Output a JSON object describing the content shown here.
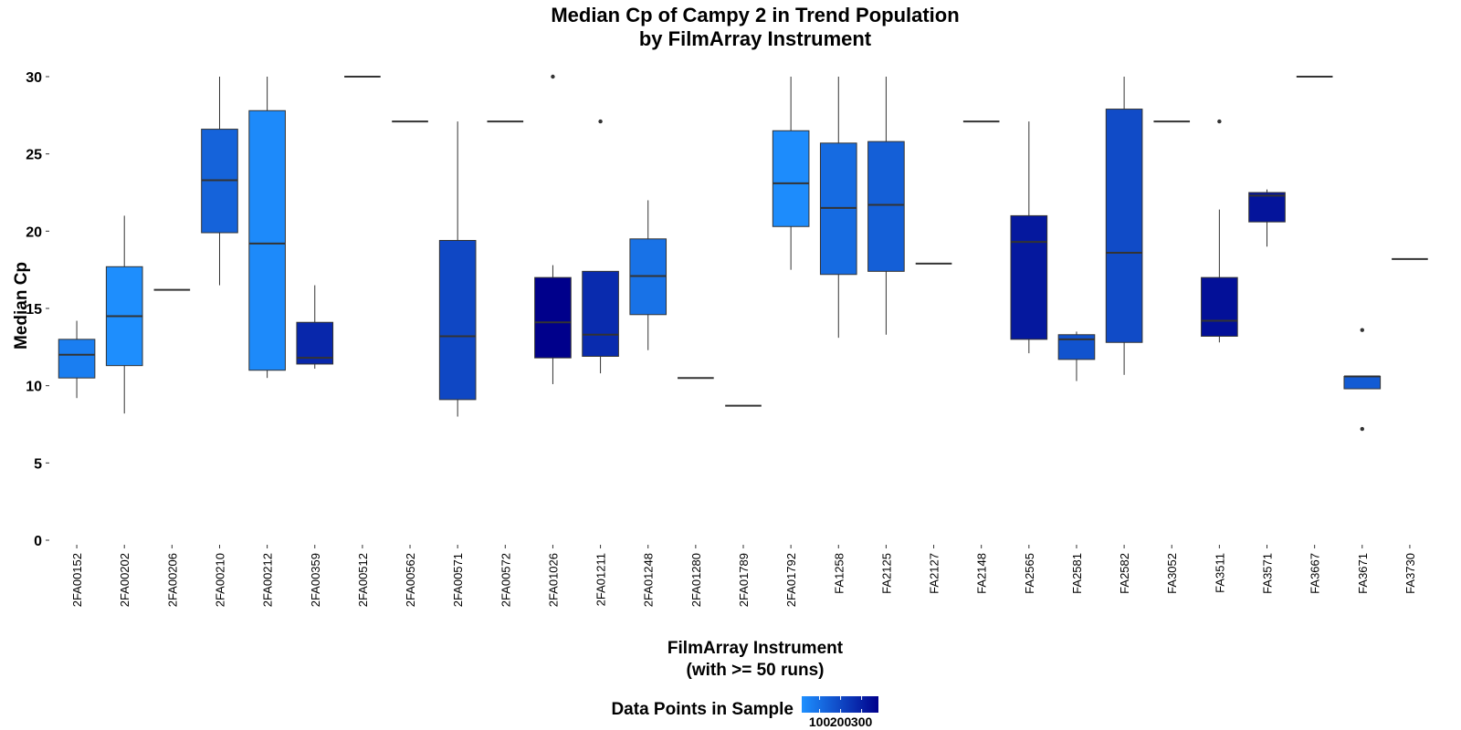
{
  "chart_data": {
    "type": "boxplot",
    "title_line1": "Median Cp of Campy 2 in Trend Population",
    "title_line2": "by FilmArray Instrument",
    "xlabel_line1": "FilmArray Instrument",
    "xlabel_line2": "(with >= 50 runs)",
    "ylabel": "Median Cp",
    "ylim": [
      0,
      30
    ],
    "yticks": [
      0,
      5,
      10,
      15,
      20,
      25,
      30
    ],
    "grid": false,
    "legend": {
      "title": "Data Points in Sample",
      "position": "bottom",
      "ticks": [
        100,
        200,
        300
      ],
      "range": [
        15,
        380
      ],
      "color_low": "#1E90FF",
      "color_high": "#00008B"
    },
    "instruments": [
      {
        "name": "2FA00152",
        "min": 9.2,
        "q1": 10.5,
        "median": 12.0,
        "q3": 13.0,
        "max": 14.2,
        "outliers": [],
        "n": 60
      },
      {
        "name": "2FA00202",
        "min": 8.2,
        "q1": 11.3,
        "median": 14.5,
        "q3": 17.7,
        "max": 21.0,
        "outliers": [],
        "n": 20
      },
      {
        "name": "2FA00206",
        "min": 16.2,
        "q1": 16.2,
        "median": 16.2,
        "q3": 16.2,
        "max": 16.2,
        "outliers": [],
        "n": 60
      },
      {
        "name": "2FA00210",
        "min": 16.5,
        "q1": 19.9,
        "median": 23.3,
        "q3": 26.6,
        "max": 30.0,
        "outliers": [],
        "n": 130
      },
      {
        "name": "2FA00212",
        "min": 10.5,
        "q1": 11.0,
        "median": 19.2,
        "q3": 27.8,
        "max": 30.0,
        "outliers": [],
        "n": 30
      },
      {
        "name": "2FA00359",
        "min": 11.1,
        "q1": 11.4,
        "median": 11.8,
        "q3": 14.1,
        "max": 16.5,
        "outliers": [],
        "n": 280
      },
      {
        "name": "2FA00512",
        "min": 30.0,
        "q1": 30.0,
        "median": 30.0,
        "q3": 30.0,
        "max": 30.0,
        "outliers": [],
        "n": 60
      },
      {
        "name": "2FA00562",
        "min": 27.1,
        "q1": 27.1,
        "median": 27.1,
        "q3": 27.1,
        "max": 27.1,
        "outliers": [],
        "n": 60
      },
      {
        "name": "2FA00571",
        "min": 8.0,
        "q1": 9.1,
        "median": 13.2,
        "q3": 19.4,
        "max": 27.1,
        "outliers": [],
        "n": 200
      },
      {
        "name": "2FA00572",
        "min": 27.1,
        "q1": 27.1,
        "median": 27.1,
        "q3": 27.1,
        "max": 27.1,
        "outliers": [],
        "n": 60
      },
      {
        "name": "2FA01026",
        "min": 10.1,
        "q1": 11.8,
        "median": 14.1,
        "q3": 17.0,
        "max": 17.8,
        "outliers": [
          30.0
        ],
        "n": 380
      },
      {
        "name": "2FA01211",
        "min": 10.8,
        "q1": 11.9,
        "median": 13.3,
        "q3": 17.4,
        "max": 17.4,
        "outliers": [
          27.1
        ],
        "n": 270
      },
      {
        "name": "2FA01248",
        "min": 12.3,
        "q1": 14.6,
        "median": 17.1,
        "q3": 19.5,
        "max": 22.0,
        "outliers": [],
        "n": 90
      },
      {
        "name": "2FA01280",
        "min": 10.5,
        "q1": 10.5,
        "median": 10.5,
        "q3": 10.5,
        "max": 10.5,
        "outliers": [],
        "n": 60
      },
      {
        "name": "2FA01789",
        "min": 8.7,
        "q1": 8.7,
        "median": 8.7,
        "q3": 8.7,
        "max": 8.7,
        "outliers": [],
        "n": 60
      },
      {
        "name": "2FA01792",
        "min": 17.5,
        "q1": 20.3,
        "median": 23.1,
        "q3": 26.5,
        "max": 30.0,
        "outliers": [],
        "n": 25
      },
      {
        "name": "FA1258",
        "min": 13.1,
        "q1": 17.2,
        "median": 21.5,
        "q3": 25.7,
        "max": 30.0,
        "outliers": [],
        "n": 110
      },
      {
        "name": "FA2125",
        "min": 13.3,
        "q1": 17.4,
        "median": 21.7,
        "q3": 25.8,
        "max": 30.0,
        "outliers": [],
        "n": 140
      },
      {
        "name": "FA2127",
        "min": 17.9,
        "q1": 17.9,
        "median": 17.9,
        "q3": 17.9,
        "max": 17.9,
        "outliers": [],
        "n": 60
      },
      {
        "name": "FA2148",
        "min": 27.1,
        "q1": 27.1,
        "median": 27.1,
        "q3": 27.1,
        "max": 27.1,
        "outliers": [],
        "n": 60
      },
      {
        "name": "FA2565",
        "min": 12.1,
        "q1": 13.0,
        "median": 19.3,
        "q3": 21.0,
        "max": 27.1,
        "outliers": [],
        "n": 320
      },
      {
        "name": "FA2581",
        "min": 10.3,
        "q1": 11.7,
        "median": 13.0,
        "q3": 13.3,
        "max": 13.5,
        "outliers": [],
        "n": 170
      },
      {
        "name": "FA2582",
        "min": 10.7,
        "q1": 12.8,
        "median": 18.6,
        "q3": 27.9,
        "max": 30.0,
        "outliers": [],
        "n": 190
      },
      {
        "name": "FA3052",
        "min": 27.1,
        "q1": 27.1,
        "median": 27.1,
        "q3": 27.1,
        "max": 27.1,
        "outliers": [],
        "n": 60
      },
      {
        "name": "FA3511",
        "min": 12.8,
        "q1": 13.2,
        "median": 14.2,
        "q3": 17.0,
        "max": 21.4,
        "outliers": [
          27.1
        ],
        "n": 340
      },
      {
        "name": "FA3571",
        "min": 19.0,
        "q1": 20.6,
        "median": 22.3,
        "q3": 22.5,
        "max": 22.7,
        "outliers": [],
        "n": 330
      },
      {
        "name": "FA3667",
        "min": 30.0,
        "q1": 30.0,
        "median": 30.0,
        "q3": 30.0,
        "max": 30.0,
        "outliers": [],
        "n": 60
      },
      {
        "name": "FA3671",
        "min": 9.8,
        "q1": 9.8,
        "median": 10.6,
        "q3": 10.6,
        "max": 10.6,
        "outliers": [
          13.6,
          7.2
        ],
        "n": 150
      },
      {
        "name": "FA3730",
        "min": 18.2,
        "q1": 18.2,
        "median": 18.2,
        "q3": 18.2,
        "max": 18.2,
        "outliers": [],
        "n": 60
      }
    ]
  }
}
